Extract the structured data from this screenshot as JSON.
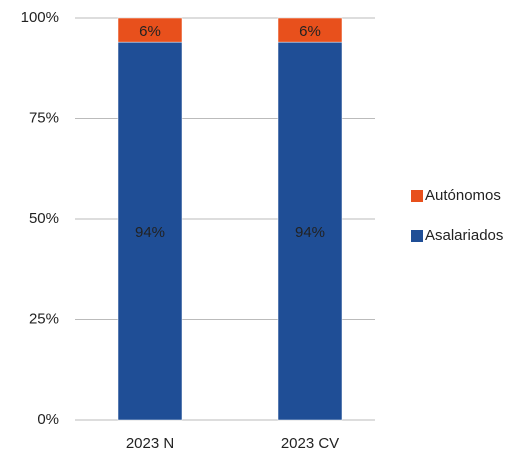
{
  "chart_data": {
    "type": "stacked_bar",
    "categories": [
      "2023 N",
      "2023 CV"
    ],
    "series": [
      {
        "name": "Asalariados",
        "color": "#1f4e96",
        "values": [
          94,
          94
        ],
        "value_labels": [
          "94%",
          "94%"
        ]
      },
      {
        "name": "Autónomos",
        "color": "#e8501c",
        "values": [
          6,
          6
        ],
        "value_labels": [
          "6%",
          "6%"
        ]
      }
    ],
    "ylim": [
      0,
      100
    ],
    "yticks": [
      {
        "value": 0,
        "label": "0%"
      },
      {
        "value": 25,
        "label": "25%"
      },
      {
        "value": 50,
        "label": "50%"
      },
      {
        "value": 75,
        "label": "75%"
      },
      {
        "value": 100,
        "label": "100%"
      }
    ],
    "grid": true,
    "legend": "right"
  }
}
